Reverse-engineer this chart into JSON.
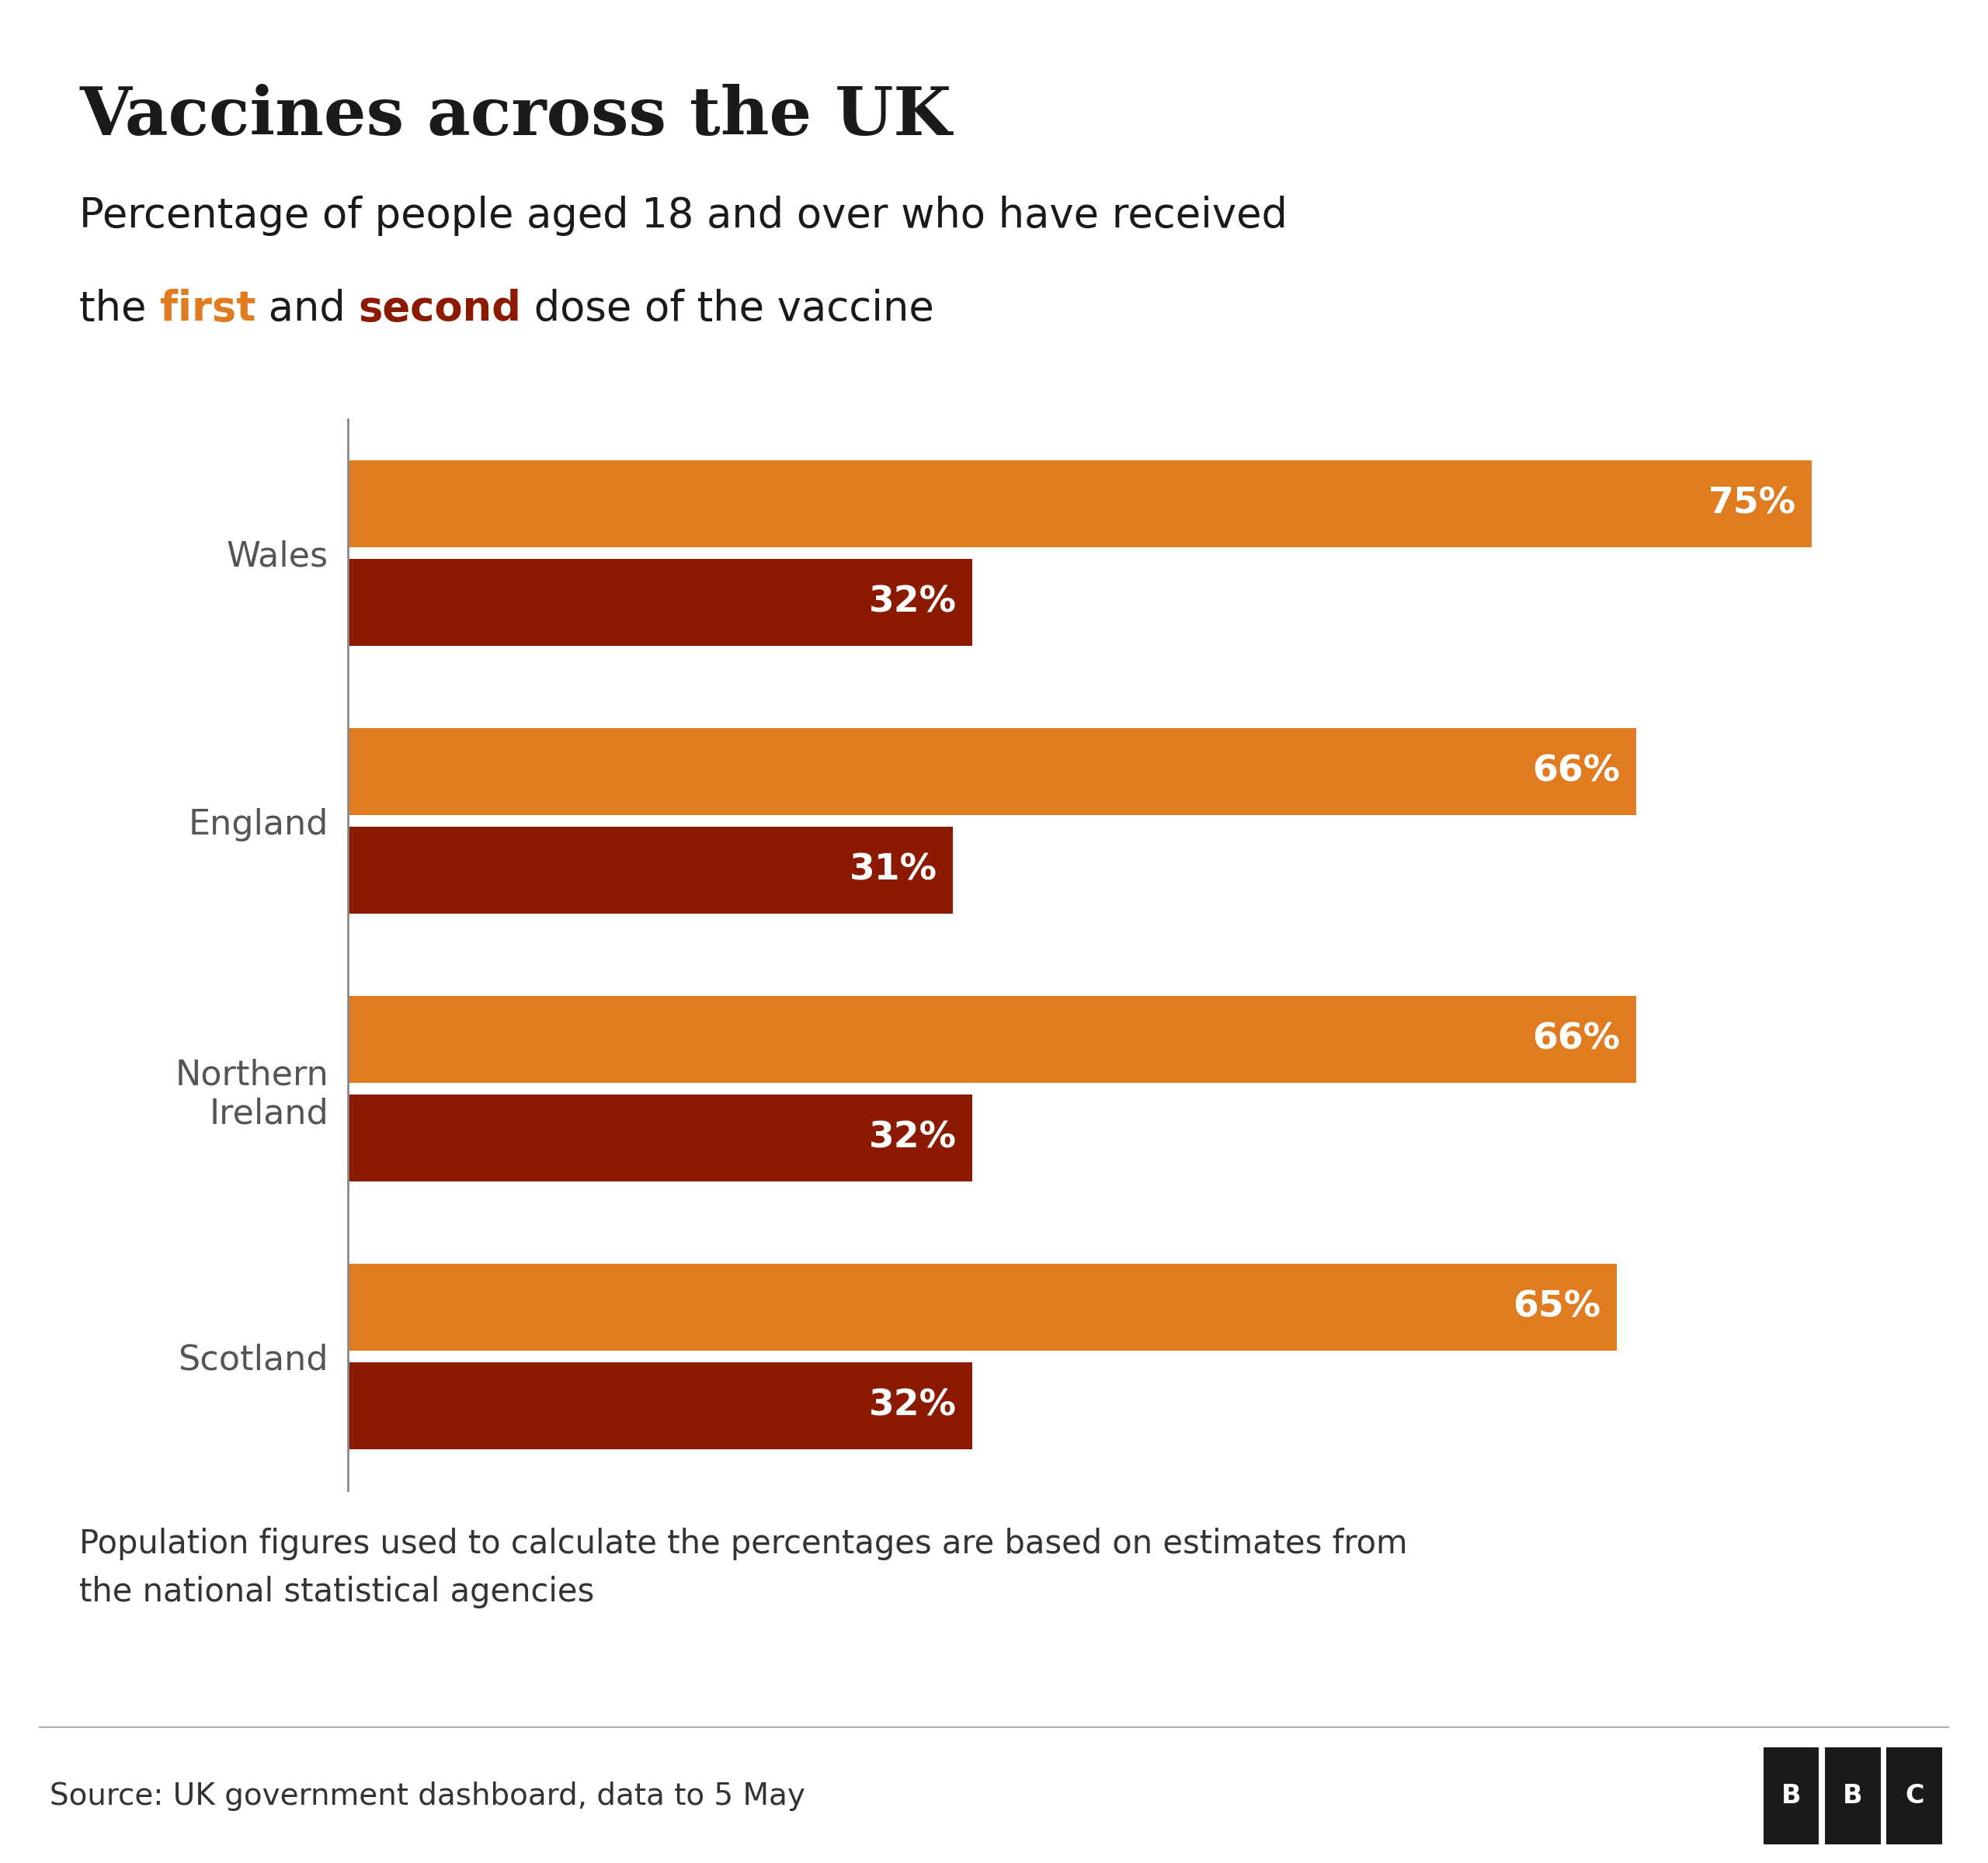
{
  "title": "Vaccines across the UK",
  "subtitle_line1": "Percentage of people aged 18 and over who have received",
  "subtitle_line2_before": "the ",
  "subtitle_first": "first",
  "subtitle_middle": " and ",
  "subtitle_second": "second",
  "subtitle_after": " dose of the vaccine",
  "nations": [
    "Wales",
    "England",
    "Northern\nIreland",
    "Scotland"
  ],
  "first_dose": [
    75,
    66,
    66,
    65
  ],
  "second_dose": [
    32,
    31,
    32,
    32
  ],
  "first_color": "#E07B20",
  "second_color": "#8B1A00",
  "bar_label_color": "#FFFFFF",
  "title_color": "#1A1A1A",
  "subtitle_color": "#1A1A1A",
  "first_text_color": "#E07B20",
  "second_text_color": "#8B1A00",
  "background_color": "#FFFFFF",
  "source_bar_color": "#FFFFFF",
  "footnote": "Population figures used to calculate the percentages are based on estimates from\nthe national statistical agencies",
  "source": "Source: UK government dashboard, data to 5 May",
  "xlim": [
    0,
    82
  ],
  "ylabel_fontsize": 32,
  "bar_label_fontsize": 34,
  "title_fontsize": 62,
  "subtitle_fontsize": 38,
  "footnote_fontsize": 30,
  "source_fontsize": 28
}
